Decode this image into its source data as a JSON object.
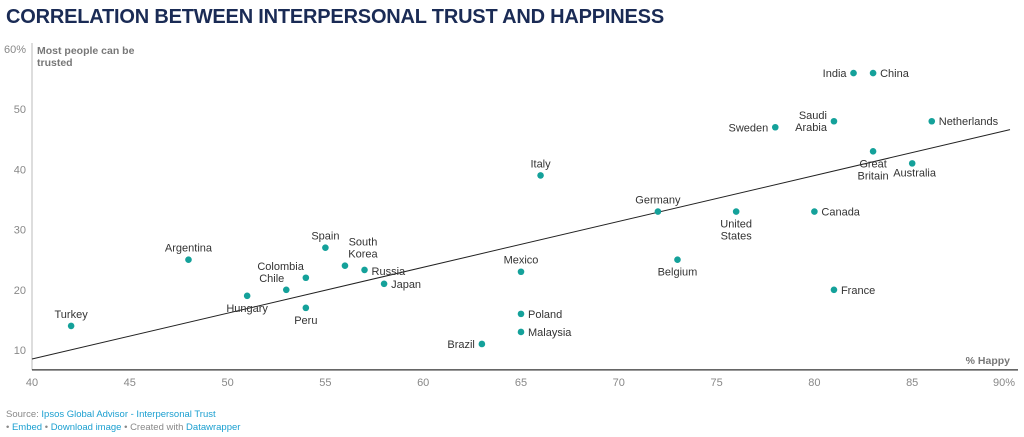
{
  "chart_data": {
    "type": "scatter",
    "title": "CORRELATION BETWEEN INTERPERSONAL TRUST AND HAPPINESS",
    "xlabel": "% Happy",
    "ylabel": "Most people can be trusted",
    "ylabel_lines": [
      "Most people can be",
      "trusted"
    ],
    "xlim": [
      40,
      90
    ],
    "ylim": [
      6.7,
      60
    ],
    "x_ticks": [
      {
        "v": 40,
        "t": "40"
      },
      {
        "v": 45,
        "t": "45"
      },
      {
        "v": 50,
        "t": "50"
      },
      {
        "v": 55,
        "t": "55"
      },
      {
        "v": 60,
        "t": "60"
      },
      {
        "v": 65,
        "t": "65"
      },
      {
        "v": 70,
        "t": "70"
      },
      {
        "v": 75,
        "t": "75"
      },
      {
        "v": 80,
        "t": "80"
      },
      {
        "v": 85,
        "t": "85"
      },
      {
        "v": 90,
        "t": "90%"
      }
    ],
    "y_ticks": [
      {
        "v": 10,
        "t": "10"
      },
      {
        "v": 20,
        "t": "20"
      },
      {
        "v": 30,
        "t": "30"
      },
      {
        "v": 40,
        "t": "40"
      },
      {
        "v": 50,
        "t": "50"
      },
      {
        "v": 60,
        "t": "60%"
      }
    ],
    "point_color": "#14a19a",
    "trendline": {
      "x": [
        40,
        90
      ],
      "y": [
        8.5,
        46.6
      ]
    },
    "points": [
      {
        "name": "Turkey",
        "x": 42,
        "y": 14,
        "pos": "top"
      },
      {
        "name": "Argentina",
        "x": 48,
        "y": 25,
        "pos": "top"
      },
      {
        "name": "Hungary",
        "x": 51,
        "y": 19,
        "pos": "bottom"
      },
      {
        "name": "Chile",
        "x": 53,
        "y": 20,
        "pos": "topleft"
      },
      {
        "name": "Colombia",
        "x": 54,
        "y": 22,
        "pos": "topleft"
      },
      {
        "name": "Peru",
        "x": 54,
        "y": 17,
        "pos": "bottom"
      },
      {
        "name": "Spain",
        "x": 55,
        "y": 27,
        "pos": "top"
      },
      {
        "name": "South Korea",
        "lines": [
          "South",
          "Korea"
        ],
        "x": 56,
        "y": 24,
        "pos": "topright"
      },
      {
        "name": "Russia",
        "x": 57,
        "y": 23.3,
        "pos": "top"
      },
      {
        "name": "Japan",
        "x": 58,
        "y": 21,
        "pos": "right"
      },
      {
        "name": "Mexico",
        "x": 65,
        "y": 23,
        "pos": "top"
      },
      {
        "name": "Poland",
        "x": 65,
        "y": 16,
        "pos": "right"
      },
      {
        "name": "Malaysia",
        "x": 65,
        "y": 13,
        "pos": "right"
      },
      {
        "name": "Brazil",
        "x": 63,
        "y": 11,
        "pos": "left"
      },
      {
        "name": "Italy",
        "x": 66,
        "y": 39,
        "pos": "top"
      },
      {
        "name": "Germany",
        "x": 72,
        "y": 33,
        "pos": "top"
      },
      {
        "name": "Belgium",
        "x": 73,
        "y": 25,
        "pos": "bottom"
      },
      {
        "name": "United States",
        "lines": [
          "United",
          "States"
        ],
        "x": 76,
        "y": 33,
        "pos": "bottom"
      },
      {
        "name": "Sweden",
        "x": 78,
        "y": 47,
        "pos": "left"
      },
      {
        "name": "Canada",
        "x": 80,
        "y": 33,
        "pos": "right"
      },
      {
        "name": "Saudi Arabia",
        "lines": [
          "Saudi",
          "Arabia"
        ],
        "x": 81,
        "y": 48,
        "pos": "left"
      },
      {
        "name": "France",
        "x": 81,
        "y": 20,
        "pos": "right"
      },
      {
        "name": "India",
        "x": 82,
        "y": 56,
        "pos": "left"
      },
      {
        "name": "China",
        "x": 83,
        "y": 56,
        "pos": "right"
      },
      {
        "name": "Great Britain",
        "lines": [
          "Great",
          "Britain"
        ],
        "x": 83,
        "y": 43,
        "pos": "bottom"
      },
      {
        "name": "Australia",
        "x": 85,
        "y": 41,
        "pos": "bottom"
      },
      {
        "name": "Netherlands",
        "x": 86,
        "y": 48,
        "pos": "right"
      }
    ]
  },
  "footer": {
    "source_prefix": "Source:",
    "source_link": "Ipsos Global Advisor - Interpersonal Trust",
    "embed": "Embed",
    "download": "Download image",
    "created_with": "Created with",
    "datawrapper": "Datawrapper"
  }
}
